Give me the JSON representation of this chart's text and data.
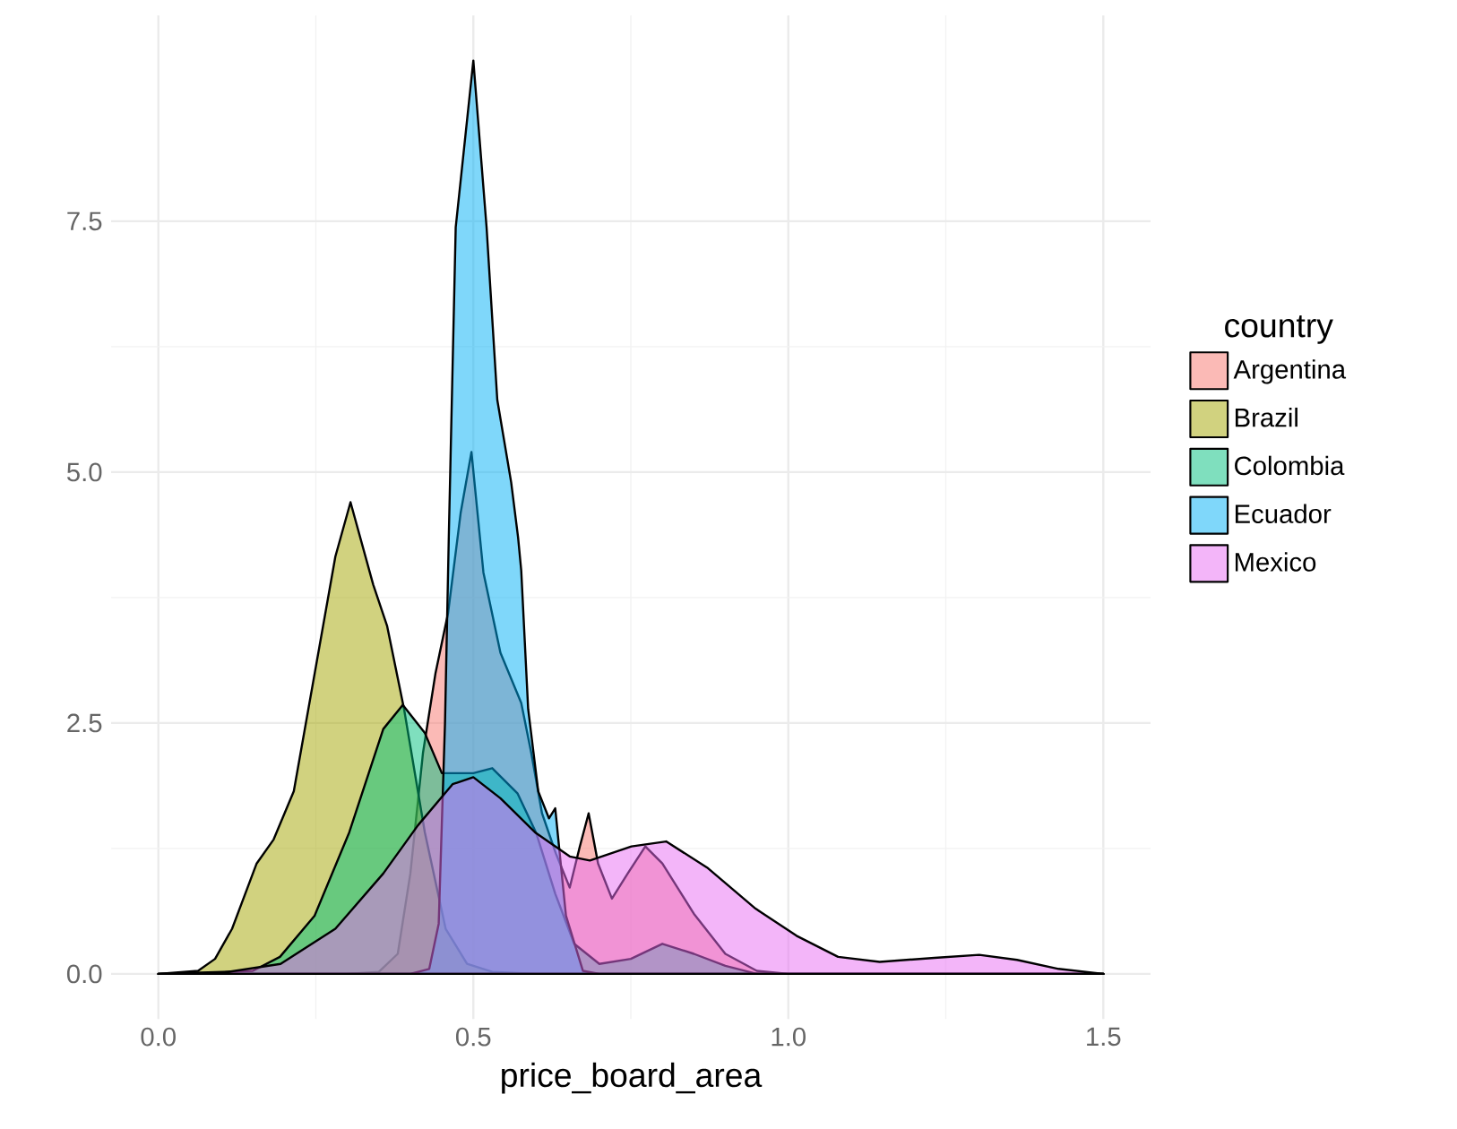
{
  "chart_data": {
    "type": "area",
    "xlabel": "price_board_area",
    "legend_title": "country",
    "legend": "right",
    "grid": true,
    "xlim": [
      -0.075,
      1.575
    ],
    "ylim": [
      -0.45,
      9.55
    ],
    "xticks": [
      {
        "value": 0,
        "label": "0.0"
      },
      {
        "value": 0.5,
        "label": "0.5"
      },
      {
        "value": 1,
        "label": "1.0"
      },
      {
        "value": 1.5,
        "label": "1.5"
      }
    ],
    "yticks": [
      {
        "value": 0,
        "label": "0.0"
      },
      {
        "value": 2.5,
        "label": "2.5"
      },
      {
        "value": 5,
        "label": "5.0"
      },
      {
        "value": 7.5,
        "label": "7.5"
      }
    ],
    "series": [
      {
        "name": "Argentina",
        "color": "#F8766D",
        "x": [
          0.3,
          0.35,
          0.38,
          0.4,
          0.42,
          0.44,
          0.46,
          0.48,
          0.497,
          0.516,
          0.543,
          0.576,
          0.592,
          0.609,
          0.631,
          0.653,
          0.669,
          0.683,
          0.698,
          0.72,
          0.745,
          0.773,
          0.8,
          0.85,
          0.9,
          0.95,
          1.0,
          1.5
        ],
        "values": [
          0,
          0.02,
          0.2,
          1.0,
          2.2,
          3.0,
          3.6,
          4.6,
          5.2,
          4.0,
          3.2,
          2.7,
          2.2,
          1.6,
          1.2,
          0.86,
          1.27,
          1.6,
          1.1,
          0.75,
          1.0,
          1.27,
          1.1,
          0.6,
          0.2,
          0.03,
          0,
          0
        ]
      },
      {
        "name": "Brazil",
        "color": "#A3A500",
        "x": [
          0,
          0.063,
          0.09,
          0.117,
          0.156,
          0.183,
          0.215,
          0.248,
          0.281,
          0.305,
          0.341,
          0.363,
          0.39,
          0.423,
          0.456,
          0.49,
          0.53,
          0.6,
          1.5
        ],
        "values": [
          0,
          0.03,
          0.15,
          0.45,
          1.1,
          1.34,
          1.82,
          2.99,
          4.16,
          4.7,
          3.88,
          3.47,
          2.64,
          1.41,
          0.45,
          0.1,
          0.02,
          0,
          0
        ]
      },
      {
        "name": "Colombia",
        "color": "#00BF7D",
        "x": [
          0,
          0.15,
          0.193,
          0.248,
          0.303,
          0.357,
          0.388,
          0.423,
          0.45,
          0.5,
          0.53,
          0.57,
          0.6,
          0.63,
          0.66,
          0.7,
          0.75,
          0.8,
          0.85,
          0.9,
          0.95,
          1.5
        ],
        "values": [
          0,
          0.03,
          0.17,
          0.58,
          1.41,
          2.44,
          2.68,
          2.4,
          2.0,
          2.0,
          2.05,
          1.8,
          1.4,
          0.8,
          0.3,
          0.1,
          0.15,
          0.3,
          0.2,
          0.08,
          0,
          0
        ]
      },
      {
        "name": "Ecuador",
        "color": "#00B0F6",
        "x": [
          0,
          0.4,
          0.43,
          0.445,
          0.455,
          0.461,
          0.472,
          0.5,
          0.521,
          0.538,
          0.56,
          0.571,
          0.576,
          0.587,
          0.603,
          0.62,
          0.63,
          0.636,
          0.647,
          0.674,
          0.7,
          1.5
        ],
        "values": [
          0,
          0,
          0.05,
          0.5,
          2.5,
          4.35,
          7.44,
          9.1,
          7.44,
          5.72,
          4.9,
          4.35,
          4.02,
          2.64,
          1.82,
          1.55,
          1.65,
          1.27,
          0.58,
          0.03,
          0,
          0
        ]
      },
      {
        "name": "Mexico",
        "color": "#E76BF3",
        "x": [
          0,
          0.1,
          0.194,
          0.281,
          0.357,
          0.412,
          0.467,
          0.5,
          0.543,
          0.598,
          0.653,
          0.685,
          0.751,
          0.806,
          0.871,
          0.948,
          1.013,
          1.079,
          1.145,
          1.232,
          1.303,
          1.363,
          1.429,
          1.5
        ],
        "values": [
          0,
          0.01,
          0.1,
          0.45,
          1.0,
          1.48,
          1.89,
          1.96,
          1.75,
          1.41,
          1.17,
          1.13,
          1.27,
          1.32,
          1.06,
          0.65,
          0.38,
          0.17,
          0.12,
          0.16,
          0.19,
          0.14,
          0.05,
          0
        ]
      }
    ]
  }
}
